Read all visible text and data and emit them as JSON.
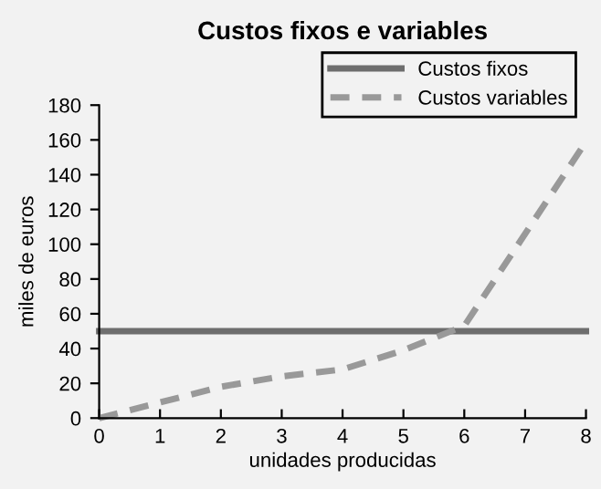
{
  "chart_data": {
    "type": "line",
    "title": "Custos fixos e variables",
    "xlabel": "unidades producidas",
    "ylabel": "miles de euros",
    "xlim": [
      0,
      8
    ],
    "xticks": [
      0,
      1,
      2,
      3,
      4,
      5,
      6,
      7,
      8
    ],
    "ylim": [
      0,
      180
    ],
    "yticks": [
      0,
      20,
      40,
      60,
      80,
      100,
      120,
      140,
      160,
      180
    ],
    "grid": false,
    "legend": "top right",
    "series": [
      {
        "name": "Custos fixos",
        "color": "#6e6e6e",
        "line_style": "solid",
        "x": [
          0,
          8
        ],
        "values": [
          50,
          50
        ]
      },
      {
        "name": "Custos variables",
        "color": "#999999",
        "line_style": "dashed",
        "x": [
          0,
          1,
          2,
          3,
          4,
          5,
          6,
          8
        ],
        "values": [
          0,
          9,
          18,
          24,
          28,
          39,
          53,
          159
        ]
      }
    ]
  }
}
